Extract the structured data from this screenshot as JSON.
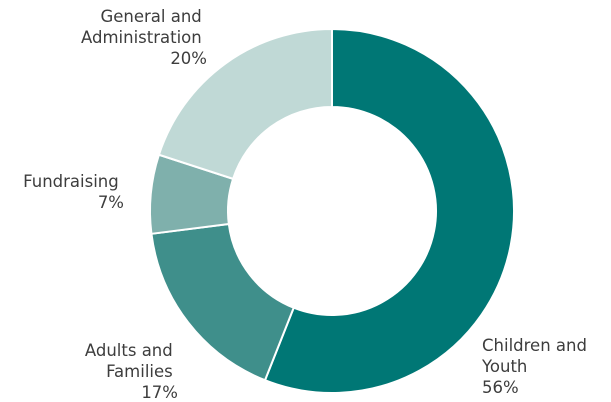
{
  "chart_data": {
    "type": "pie",
    "subtype": "donut",
    "colors": {
      "Children and Youth": "#007775",
      "Adults and Families": "#3f8f8b",
      "Fundraising": "#7fb0ac",
      "General and Administration": "#c0d9d6",
      "edge": "#ffffff"
    },
    "slices": [
      {
        "name": "Children and Youth",
        "value": 56,
        "label_lines": [
          "Children and",
          "Youth",
          "56%"
        ]
      },
      {
        "name": "Adults and Families",
        "value": 17,
        "label_lines": [
          "Adults and",
          "Families",
          "17%"
        ]
      },
      {
        "name": "Fundraising",
        "value": 7,
        "label_lines": [
          "Fundraising",
          "7%"
        ]
      },
      {
        "name": "General and Administration",
        "value": 20,
        "label_lines": [
          "General and",
          "Administration",
          "20%"
        ]
      }
    ]
  }
}
